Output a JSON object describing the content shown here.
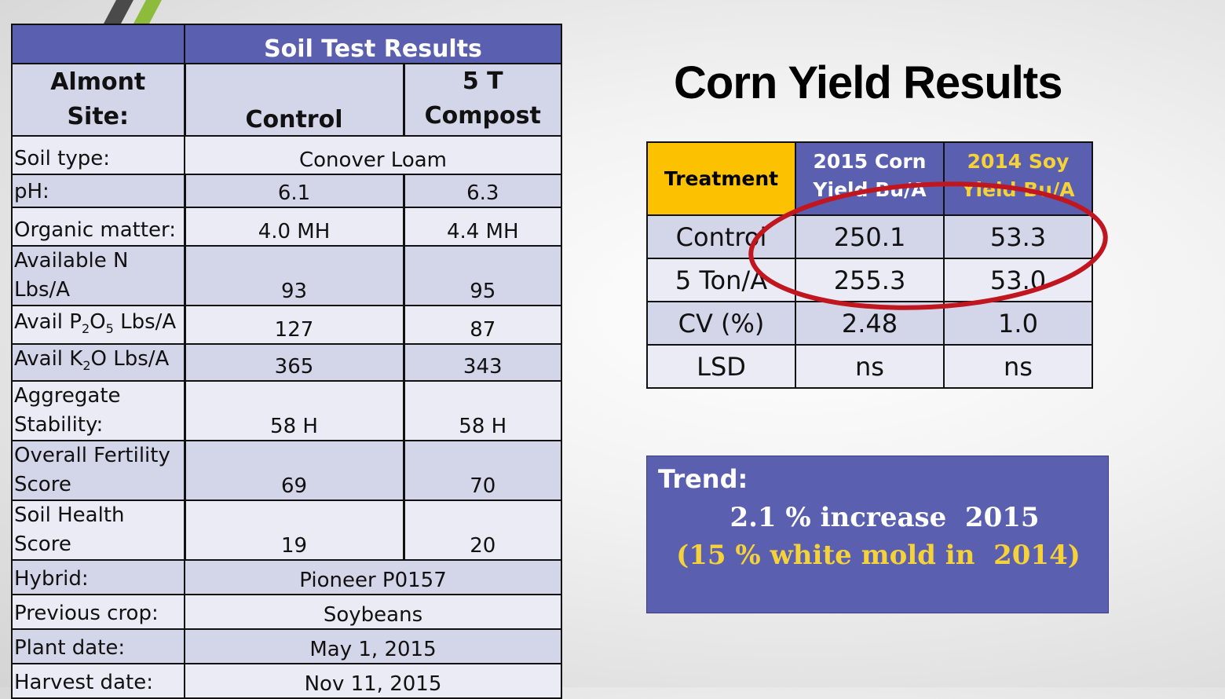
{
  "soil_table": {
    "title": "Soil Test Results",
    "header": {
      "site_line1": "Almont",
      "site_line2": "Site:",
      "control": "Control",
      "compost_line1": "5 T",
      "compost_line2": "Compost"
    },
    "rows": [
      {
        "label": "Soil type:",
        "value": "Conover Loam"
      },
      {
        "label": "pH:",
        "control": "6.1",
        "compost": "6.3"
      },
      {
        "label": "Organic matter:",
        "control": "4.0 MH",
        "compost": "4.4 MH"
      },
      {
        "label_line1": "Available  N",
        "label_line2": "Lbs/A",
        "control": "93",
        "compost": "95"
      },
      {
        "label_pre": "Avail P",
        "sub1": "2",
        "label_mid": "O",
        "sub2": "5",
        "label_post": " Lbs/A",
        "control": "127",
        "compost": "87"
      },
      {
        "label_pre": "Avail K",
        "sub1": "2",
        "label_post": "O Lbs/A",
        "control": "365",
        "compost": "343"
      },
      {
        "label_line1": "Aggregate",
        "label_line2": "Stability:",
        "control": "58 H",
        "compost": "58 H"
      },
      {
        "label_line1": "Overall Fertility",
        "label_line2": "Score",
        "control": "69",
        "compost": "70"
      },
      {
        "label": "Soil Health Score",
        "control": "19",
        "compost": "20"
      },
      {
        "label": "Hybrid:",
        "value": "Pioneer P0157"
      },
      {
        "label": "Previous crop:",
        "value": "Soybeans"
      },
      {
        "label": "Plant date:",
        "value": "May 1, 2015"
      },
      {
        "label": "Harvest date:",
        "value": "Nov 11, 2015"
      }
    ]
  },
  "title": "Corn Yield Results",
  "yield_table": {
    "headers": {
      "treatment": "Treatment",
      "corn_line1": "2015 Corn",
      "corn_line2": "Yield Bu/A",
      "soy_line1": "2014 Soy",
      "soy_line2": "Yield Bu/A"
    },
    "rows": [
      {
        "treatment": "Control",
        "corn": "250.1",
        "soy": "53.3"
      },
      {
        "treatment": "5 Ton/A",
        "corn": "255.3",
        "soy": "53.0"
      },
      {
        "treatment": "CV (%)",
        "corn": "2.48",
        "soy": "1.0"
      },
      {
        "treatment": "LSD",
        "corn": "ns",
        "soy": "ns"
      }
    ]
  },
  "trend": {
    "label": "Trend:",
    "line1": "2.1 % increase  2015",
    "line2": "(15 % white mold in  2014)"
  },
  "colors": {
    "header_purple": "#5b5fb0",
    "treatment_gold": "#fcc100",
    "highlight_red": "#c0161f",
    "accent_green": "#8dbb3b"
  }
}
